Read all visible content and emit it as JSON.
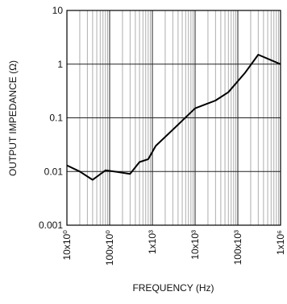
{
  "chart_data": {
    "type": "line",
    "xlabel": "FREQUENCY (Hz)",
    "ylabel": "OUTPUT IMPEDANCE (Ω)",
    "xscale": "log",
    "yscale": "log",
    "grid": true,
    "xlim": [
      10,
      1000000
    ],
    "ylim": [
      0.001,
      10
    ],
    "xticks": [
      {
        "value": 10,
        "label": "10x10⁰"
      },
      {
        "value": 100,
        "label": "100x10⁰"
      },
      {
        "value": 1000,
        "label": "1x10³"
      },
      {
        "value": 10000,
        "label": "10x10³"
      },
      {
        "value": 100000,
        "label": "100x10³"
      },
      {
        "value": 1000000,
        "label": "1x10⁶"
      }
    ],
    "xminorticks": [
      20,
      30,
      40,
      50,
      60,
      70,
      80,
      90,
      200,
      300,
      400,
      500,
      600,
      700,
      800,
      900,
      2000,
      3000,
      4000,
      5000,
      6000,
      7000,
      8000,
      9000,
      20000,
      30000,
      40000,
      50000,
      60000,
      70000,
      80000,
      90000,
      200000,
      300000,
      400000,
      500000,
      600000,
      700000,
      800000,
      900000
    ],
    "yticks": [
      0.001,
      0.01,
      0.1,
      1,
      10
    ],
    "series": [
      {
        "color": "#000000",
        "x": [
          10,
          20,
          40,
          80,
          150,
          300,
          500,
          800,
          1200,
          3000,
          10000,
          30000,
          60000,
          150000,
          300000,
          1000000
        ],
        "values": [
          0.013,
          0.01,
          0.007,
          0.0105,
          0.0098,
          0.009,
          0.015,
          0.017,
          0.03,
          0.06,
          0.15,
          0.21,
          0.3,
          0.7,
          1.5,
          1.0
        ]
      }
    ]
  }
}
